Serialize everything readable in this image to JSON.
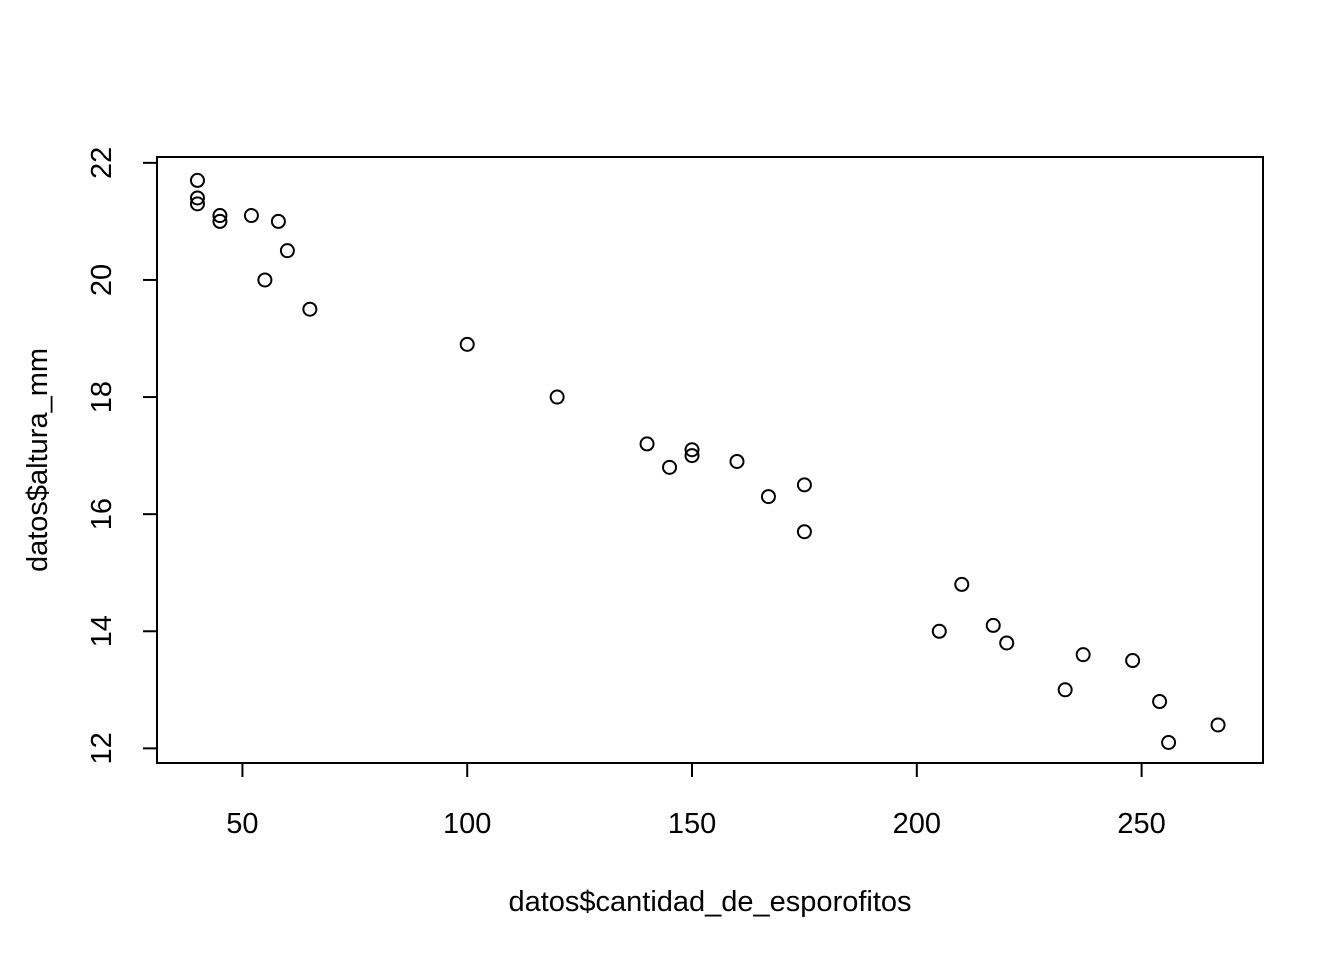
{
  "chart_data": {
    "type": "scatter",
    "title": "",
    "xlabel": "datos$cantidad_de_esporofitos",
    "ylabel": "datos$altura_mm",
    "xlim": [
      31,
      277
    ],
    "ylim": [
      11.75,
      22.1
    ],
    "x_ticks": [
      50,
      100,
      150,
      200,
      250
    ],
    "y_ticks": [
      12,
      14,
      16,
      18,
      20,
      22
    ],
    "grid": false,
    "legend": "none",
    "marker": "open-circle",
    "color": "#000000",
    "series": [
      {
        "x": [
          40,
          40,
          40,
          45,
          45,
          52,
          58,
          60,
          55,
          65,
          100,
          120,
          140,
          145,
          150,
          150,
          160,
          167,
          175,
          175,
          205,
          210,
          217,
          220,
          233,
          237,
          248,
          254,
          256,
          267
        ],
        "y": [
          21.7,
          21.4,
          21.3,
          21.1,
          21.0,
          21.1,
          21.0,
          20.5,
          20.0,
          19.5,
          18.9,
          18.0,
          17.2,
          16.8,
          17.1,
          17.0,
          16.9,
          16.3,
          16.5,
          15.7,
          14.0,
          14.8,
          14.1,
          13.8,
          13.0,
          13.6,
          13.5,
          12.8,
          12.1,
          12.4
        ]
      }
    ]
  }
}
